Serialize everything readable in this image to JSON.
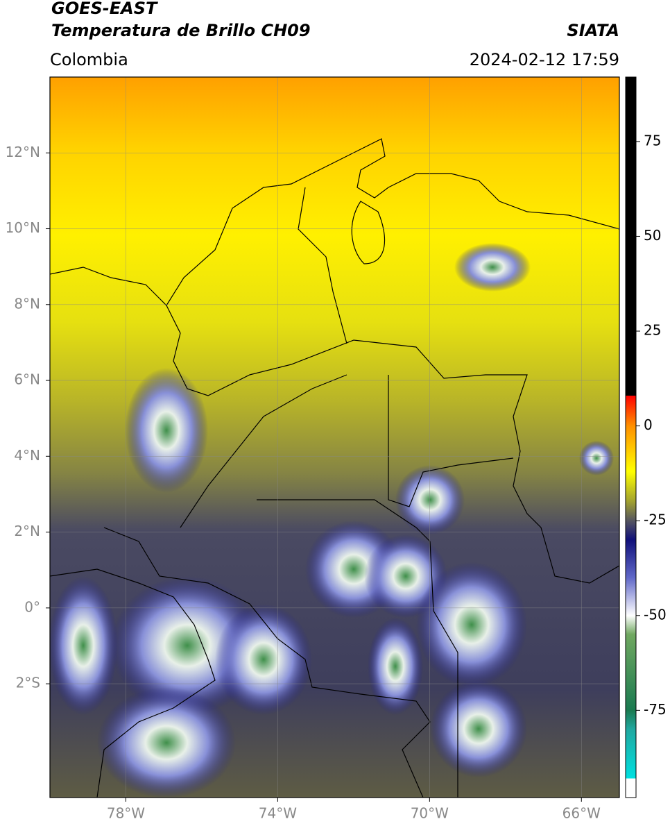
{
  "header": {
    "title": "GOES-EAST",
    "subtitle": "Temperatura de Brillo CH09",
    "source": "SIATA",
    "region": "Colombia",
    "timestamp": "2024-02-12 17:59"
  },
  "map": {
    "xlim": [
      -80,
      -65
    ],
    "ylim": [
      -5,
      14
    ],
    "grid": true,
    "xticks": [
      {
        "value": -78,
        "label": "78°W"
      },
      {
        "value": -74,
        "label": "74°W"
      },
      {
        "value": -70,
        "label": "70°W"
      },
      {
        "value": -66,
        "label": "66°W"
      }
    ],
    "yticks": [
      {
        "value": 12,
        "label": "12°N"
      },
      {
        "value": 10,
        "label": "10°N"
      },
      {
        "value": 8,
        "label": "8°N"
      },
      {
        "value": 6,
        "label": "6°N"
      },
      {
        "value": 4,
        "label": "4°N"
      },
      {
        "value": 2,
        "label": "2°N"
      },
      {
        "value": 0,
        "label": "0°"
      },
      {
        "value": -2,
        "label": "2°S"
      }
    ]
  },
  "colorbar": {
    "lim": [
      -98,
      92
    ],
    "ticks": [
      75,
      50,
      25,
      0,
      -25,
      -50,
      -75
    ],
    "colormap": [
      {
        "value": -98,
        "color": "#ffffff"
      },
      {
        "value": -93,
        "color": "#ffffff"
      },
      {
        "value": -93,
        "color": "#00e0e0"
      },
      {
        "value": -80,
        "color": "#20a8a0"
      },
      {
        "value": -75,
        "color": "#1a7a50"
      },
      {
        "value": -55,
        "color": "#70a860"
      },
      {
        "value": -50,
        "color": "#ffffff"
      },
      {
        "value": -40,
        "color": "#6068c8"
      },
      {
        "value": -30,
        "color": "#10107a"
      },
      {
        "value": -25,
        "color": "#555560"
      },
      {
        "value": -20,
        "color": "#a0a030"
      },
      {
        "value": -12,
        "color": "#ffff00"
      },
      {
        "value": 0,
        "color": "#ff9000"
      },
      {
        "value": 8,
        "color": "#ff0000"
      },
      {
        "value": 8,
        "color": "#000000"
      },
      {
        "value": 92,
        "color": "#000000"
      }
    ]
  }
}
